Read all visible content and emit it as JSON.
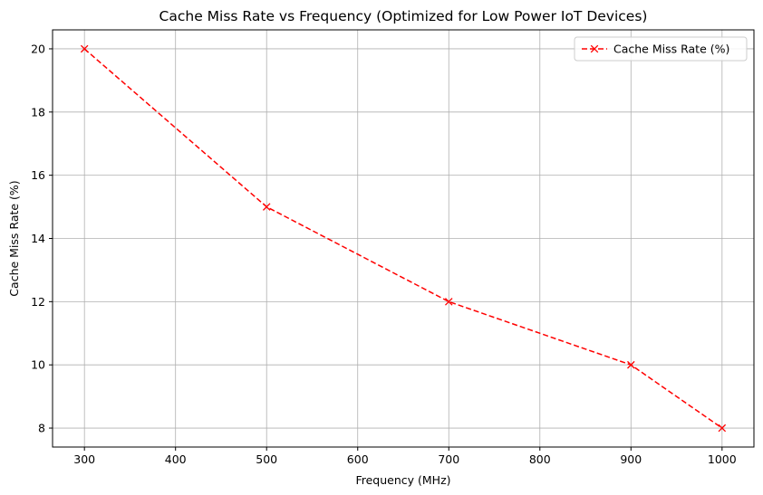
{
  "chart_data": {
    "type": "line",
    "title": "Cache Miss Rate vs Frequency (Optimized for Low Power IoT Devices)",
    "xlabel": "Frequency (MHz)",
    "ylabel": "Cache Miss Rate (%)",
    "x": [
      300,
      500,
      700,
      900,
      1000
    ],
    "series": [
      {
        "name": "Cache Miss Rate (%)",
        "values": [
          20,
          15,
          12,
          10,
          8
        ],
        "color": "#ff0000",
        "line_style": "dashed",
        "marker": "x"
      }
    ],
    "xlim": [
      265,
      1035
    ],
    "ylim": [
      7.4,
      20.6
    ],
    "xticks": [
      300,
      400,
      500,
      600,
      700,
      800,
      900,
      1000
    ],
    "yticks": [
      8,
      10,
      12,
      14,
      16,
      18,
      20
    ],
    "xtick_labels": [
      "300",
      "400",
      "500",
      "600",
      "700",
      "800",
      "900",
      "1000"
    ],
    "ytick_labels": [
      "8",
      "10",
      "12",
      "14",
      "16",
      "18",
      "20"
    ],
    "grid": true,
    "legend_position": "top-right"
  }
}
